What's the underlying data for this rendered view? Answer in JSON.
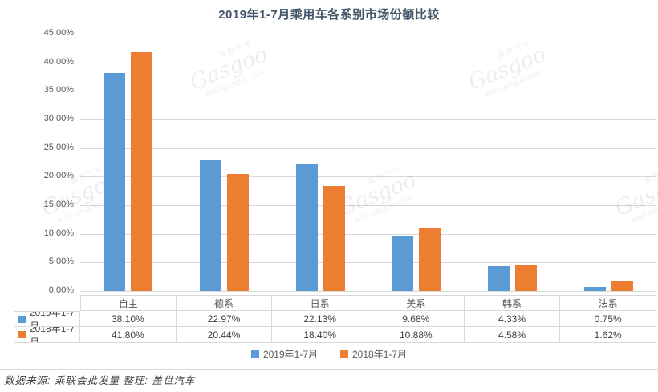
{
  "title": "2019年1-7月乘用车各系别市场份额比较",
  "chart_data": {
    "type": "bar",
    "categories": [
      "自主",
      "德系",
      "日系",
      "美系",
      "韩系",
      "法系"
    ],
    "series": [
      {
        "name": "2019年1-7月",
        "color": "#5B9BD5",
        "values": [
          38.1,
          22.97,
          22.13,
          9.68,
          4.33,
          0.75
        ],
        "labels": [
          "38.10%",
          "22.97%",
          "22.13%",
          "9.68%",
          "4.33%",
          "0.75%"
        ]
      },
      {
        "name": "2018年1-7月",
        "color": "#ED7D31",
        "values": [
          41.8,
          20.44,
          18.4,
          10.88,
          4.58,
          1.62
        ],
        "labels": [
          "41.80%",
          "20.44%",
          "18.40%",
          "10.88%",
          "4.58%",
          "1.62%"
        ]
      }
    ],
    "ylim": [
      0,
      45
    ],
    "ytick_step": 5,
    "yticks": [
      "0.00%",
      "5.00%",
      "10.00%",
      "15.00%",
      "20.00%",
      "25.00%",
      "30.00%",
      "35.00%",
      "40.00%",
      "45.00%"
    ],
    "grid": true,
    "legend_position": "bottom",
    "data_table_shown": true
  },
  "footnote": "数据来源: 乘联会批发量 整理: 盖世汽车",
  "watermark": {
    "brand_cn": "盖世汽车",
    "brand": "Gasgoo",
    "url": "auto.gasgoo.com"
  },
  "colors": {
    "series_2019": "#5B9BD5",
    "series_2018": "#ED7D31",
    "title_text": "#44546A",
    "axis_text": "#595959",
    "gridline": "#D9D9D9"
  }
}
